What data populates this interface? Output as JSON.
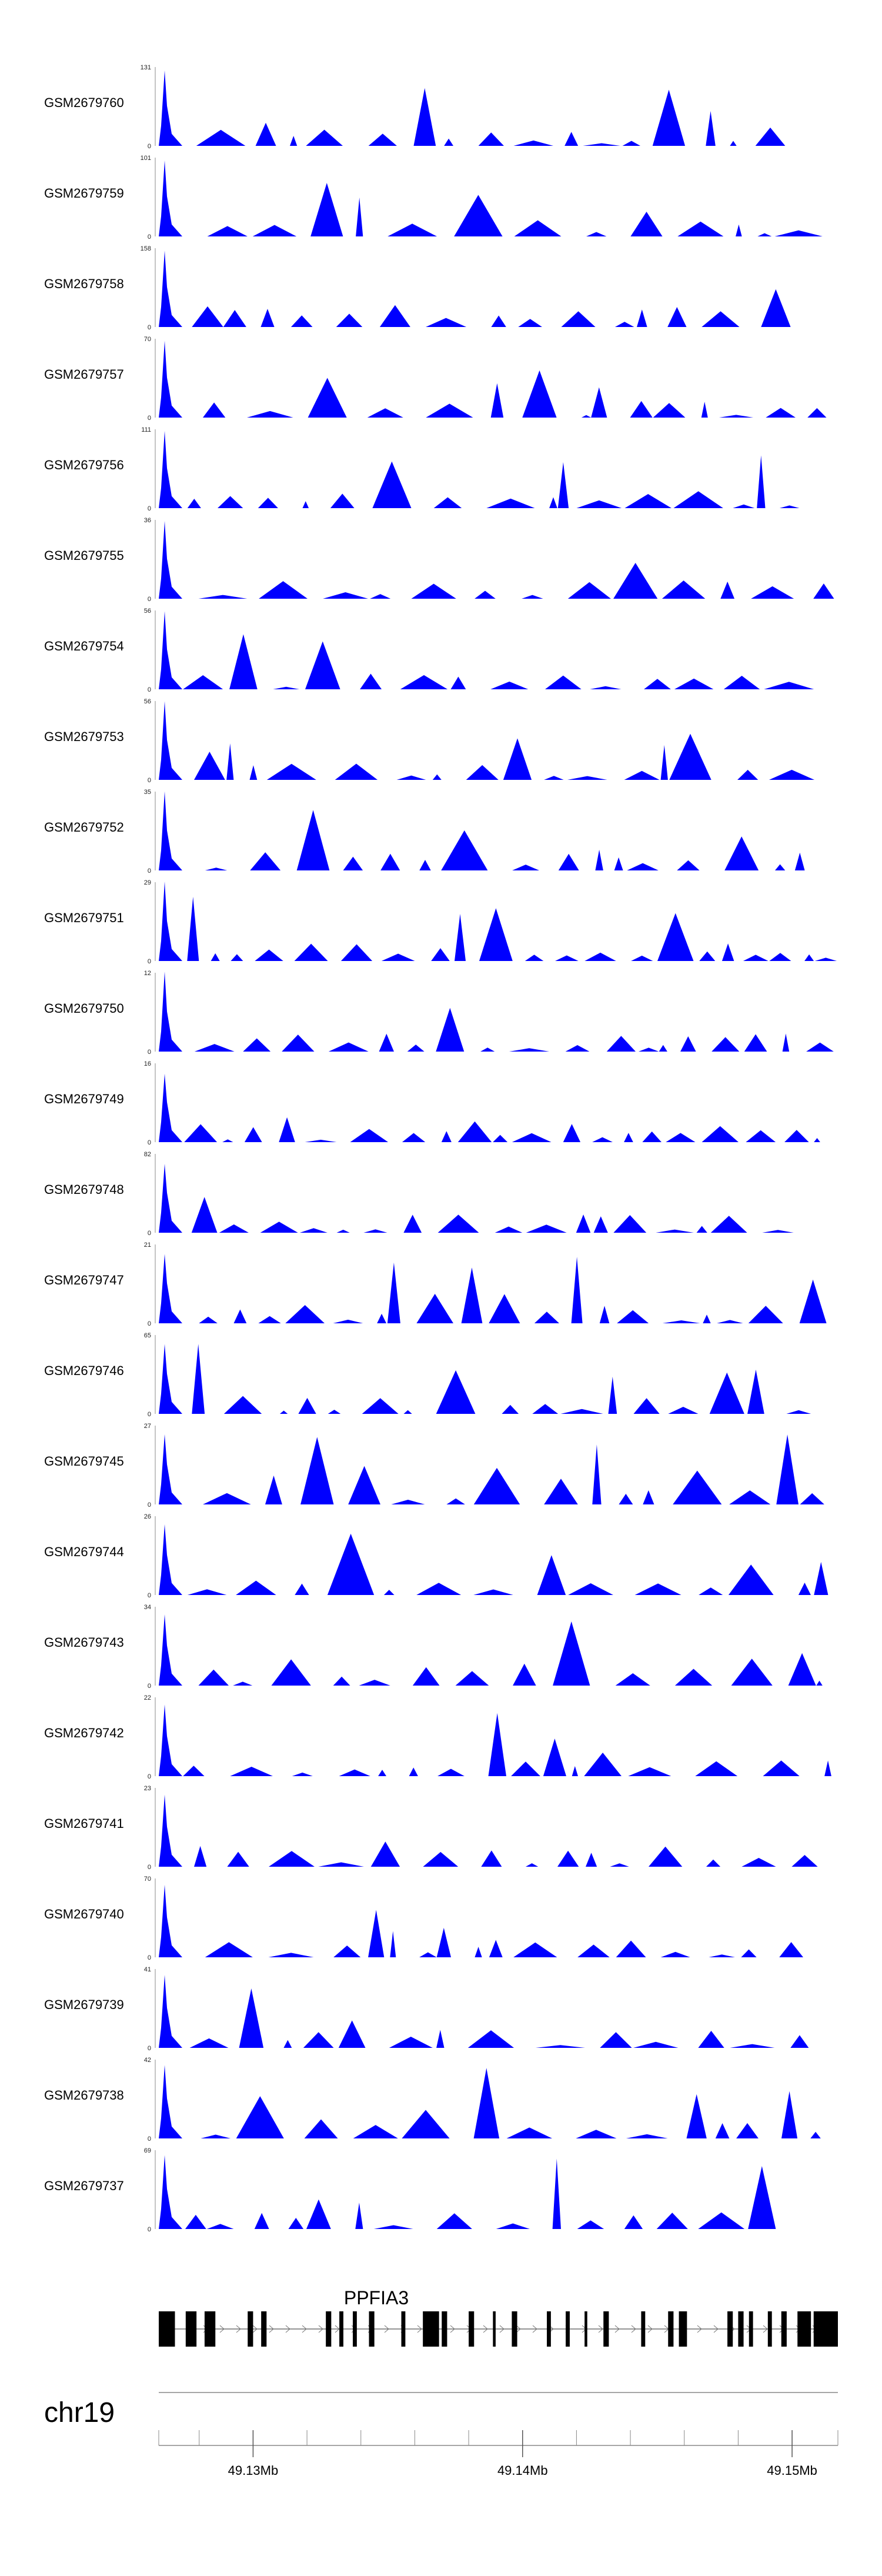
{
  "chart_data": {
    "type": "area",
    "title": "",
    "colors": {
      "coverage": "#0000ff",
      "axis": "#888888",
      "gene": "#000000"
    },
    "x_range": [
      49126500,
      49151700
    ],
    "tracks": [
      {
        "name": "GSM2679760",
        "ymax": 131,
        "ymin": 0
      },
      {
        "name": "GSM2679759",
        "ymax": 101,
        "ymin": 0
      },
      {
        "name": "GSM2679758",
        "ymax": 158,
        "ymin": 0
      },
      {
        "name": "GSM2679757",
        "ymax": 70,
        "ymin": 0
      },
      {
        "name": "GSM2679756",
        "ymax": 111,
        "ymin": 0
      },
      {
        "name": "GSM2679755",
        "ymax": 36,
        "ymin": 0
      },
      {
        "name": "GSM2679754",
        "ymax": 56,
        "ymin": 0
      },
      {
        "name": "GSM2679753",
        "ymax": 56,
        "ymin": 0
      },
      {
        "name": "GSM2679752",
        "ymax": 35,
        "ymin": 0
      },
      {
        "name": "GSM2679751",
        "ymax": 29,
        "ymin": 0
      },
      {
        "name": "GSM2679750",
        "ymax": 12,
        "ymin": 0
      },
      {
        "name": "GSM2679749",
        "ymax": 16,
        "ymin": 0
      },
      {
        "name": "GSM2679748",
        "ymax": 82,
        "ymin": 0
      },
      {
        "name": "GSM2679747",
        "ymax": 21,
        "ymin": 0
      },
      {
        "name": "GSM2679746",
        "ymax": 65,
        "ymin": 0
      },
      {
        "name": "GSM2679745",
        "ymax": 27,
        "ymin": 0
      },
      {
        "name": "GSM2679744",
        "ymax": 26,
        "ymin": 0
      },
      {
        "name": "GSM2679743",
        "ymax": 34,
        "ymin": 0
      },
      {
        "name": "GSM2679742",
        "ymax": 22,
        "ymin": 0
      },
      {
        "name": "GSM2679741",
        "ymax": 23,
        "ymin": 0
      },
      {
        "name": "GSM2679740",
        "ymax": 70,
        "ymin": 0
      },
      {
        "name": "GSM2679739",
        "ymax": 41,
        "ymin": 0
      },
      {
        "name": "GSM2679738",
        "ymax": 42,
        "ymin": 0
      },
      {
        "name": "GSM2679737",
        "ymax": 69,
        "ymin": 0
      }
    ],
    "gene": {
      "name": "PPFIA3",
      "start": 49126500,
      "end": 49151700,
      "exons": [
        [
          49126500,
          49127100
        ],
        [
          49127500,
          49127900
        ],
        [
          49128200,
          49128600
        ],
        [
          49129800,
          49130000
        ],
        [
          49130300,
          49130500
        ],
        [
          49132700,
          49132900
        ],
        [
          49133200,
          49133350
        ],
        [
          49133700,
          49133850
        ],
        [
          49134300,
          49134500
        ],
        [
          49135500,
          49135650
        ],
        [
          49136300,
          49136900
        ],
        [
          49137000,
          49137200
        ],
        [
          49138000,
          49138200
        ],
        [
          49138900,
          49139000
        ],
        [
          49139600,
          49139800
        ],
        [
          49140900,
          49141050
        ],
        [
          49141600,
          49141750
        ],
        [
          49142300,
          49142400
        ],
        [
          49143000,
          49143200
        ],
        [
          49144400,
          49144550
        ],
        [
          49145400,
          49145600
        ],
        [
          49145800,
          49146100
        ],
        [
          49147600,
          49147800
        ],
        [
          49148000,
          49148200
        ],
        [
          49148400,
          49148550
        ],
        [
          49149100,
          49149250
        ],
        [
          49149600,
          49149800
        ],
        [
          49150200,
          49150700
        ],
        [
          49150800,
          49151700
        ]
      ]
    },
    "chromosome": "chr19",
    "axis_ticks": [
      {
        "pos": 49130000,
        "label": "49.13Mb"
      },
      {
        "pos": 49140000,
        "label": "49.14Mb"
      },
      {
        "pos": 49150000,
        "label": "49.15Mb"
      }
    ],
    "minor_tick_step": 2000
  }
}
